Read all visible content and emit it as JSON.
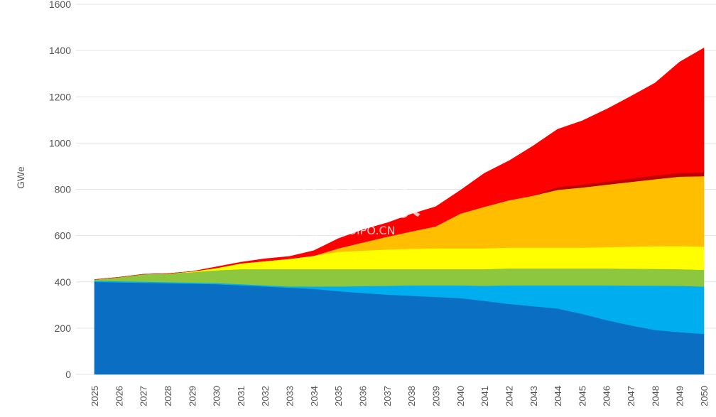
{
  "chart_data": {
    "type": "area",
    "stacked": true,
    "ylabel": "GWe",
    "xlabel": "",
    "ylim": [
      0,
      1600
    ],
    "yticks": [
      0,
      200,
      400,
      600,
      800,
      1000,
      1200,
      1400,
      1600
    ],
    "grid": true,
    "categories": [
      "2025",
      "2026",
      "2027",
      "2028",
      "2029",
      "2030",
      "2031",
      "2032",
      "2033",
      "2034",
      "2035",
      "2036",
      "2037",
      "2038",
      "2039",
      "2040",
      "2041",
      "2042",
      "2043",
      "2044",
      "2045",
      "2046",
      "2047",
      "2048",
      "2049",
      "2050"
    ],
    "series": [
      {
        "color": "#0a6fc2",
        "values": [
          400,
          398,
          396,
          394,
          392,
          390,
          385,
          380,
          375,
          370,
          360,
          352,
          345,
          340,
          335,
          330,
          318,
          305,
          295,
          285,
          262,
          235,
          212,
          192,
          183,
          175
        ]
      },
      {
        "color": "#00aeef",
        "values": [
          5,
          5,
          5,
          5,
          5,
          5,
          5,
          5,
          5,
          10,
          20,
          30,
          38,
          45,
          50,
          55,
          65,
          80,
          90,
          100,
          123,
          150,
          172,
          192,
          200,
          205
        ]
      },
      {
        "color": "#8dc63f",
        "values": [
          5,
          17,
          32,
          37,
          45,
          55,
          65,
          70,
          75,
          75,
          75,
          73,
          72,
          70,
          70,
          70,
          72,
          73,
          73,
          73,
          73,
          73,
          73,
          72,
          72,
          72
        ]
      },
      {
        "color": "#ffff00",
        "values": [
          0,
          0,
          0,
          0,
          3,
          10,
          25,
          35,
          45,
          58,
          75,
          80,
          85,
          88,
          90,
          90,
          90,
          90,
          90,
          90,
          90,
          92,
          95,
          98,
          100,
          100
        ]
      },
      {
        "color": "#ffbf00",
        "values": [
          0,
          0,
          0,
          0,
          0,
          0,
          0,
          0,
          0,
          0,
          15,
          35,
          55,
          75,
          95,
          150,
          180,
          205,
          225,
          250,
          260,
          270,
          280,
          290,
          300,
          305
        ]
      },
      {
        "color": "#c00000",
        "values": [
          0,
          0,
          0,
          0,
          0,
          0,
          0,
          0,
          0,
          0,
          0,
          0,
          0,
          0,
          0,
          0,
          0,
          0,
          0,
          12,
          13,
          14,
          15,
          16,
          16,
          16
        ]
      },
      {
        "color": "#ff0000",
        "values": [
          0,
          0,
          0,
          0,
          0,
          5,
          5,
          10,
          10,
          22,
          42,
          55,
          60,
          75,
          85,
          100,
          145,
          170,
          215,
          250,
          275,
          312,
          355,
          400,
          479,
          538
        ]
      }
    ]
  },
  "watermark": {
    "main": "并购家",
    "sub": "行业报告 IPOIPO.CN"
  }
}
